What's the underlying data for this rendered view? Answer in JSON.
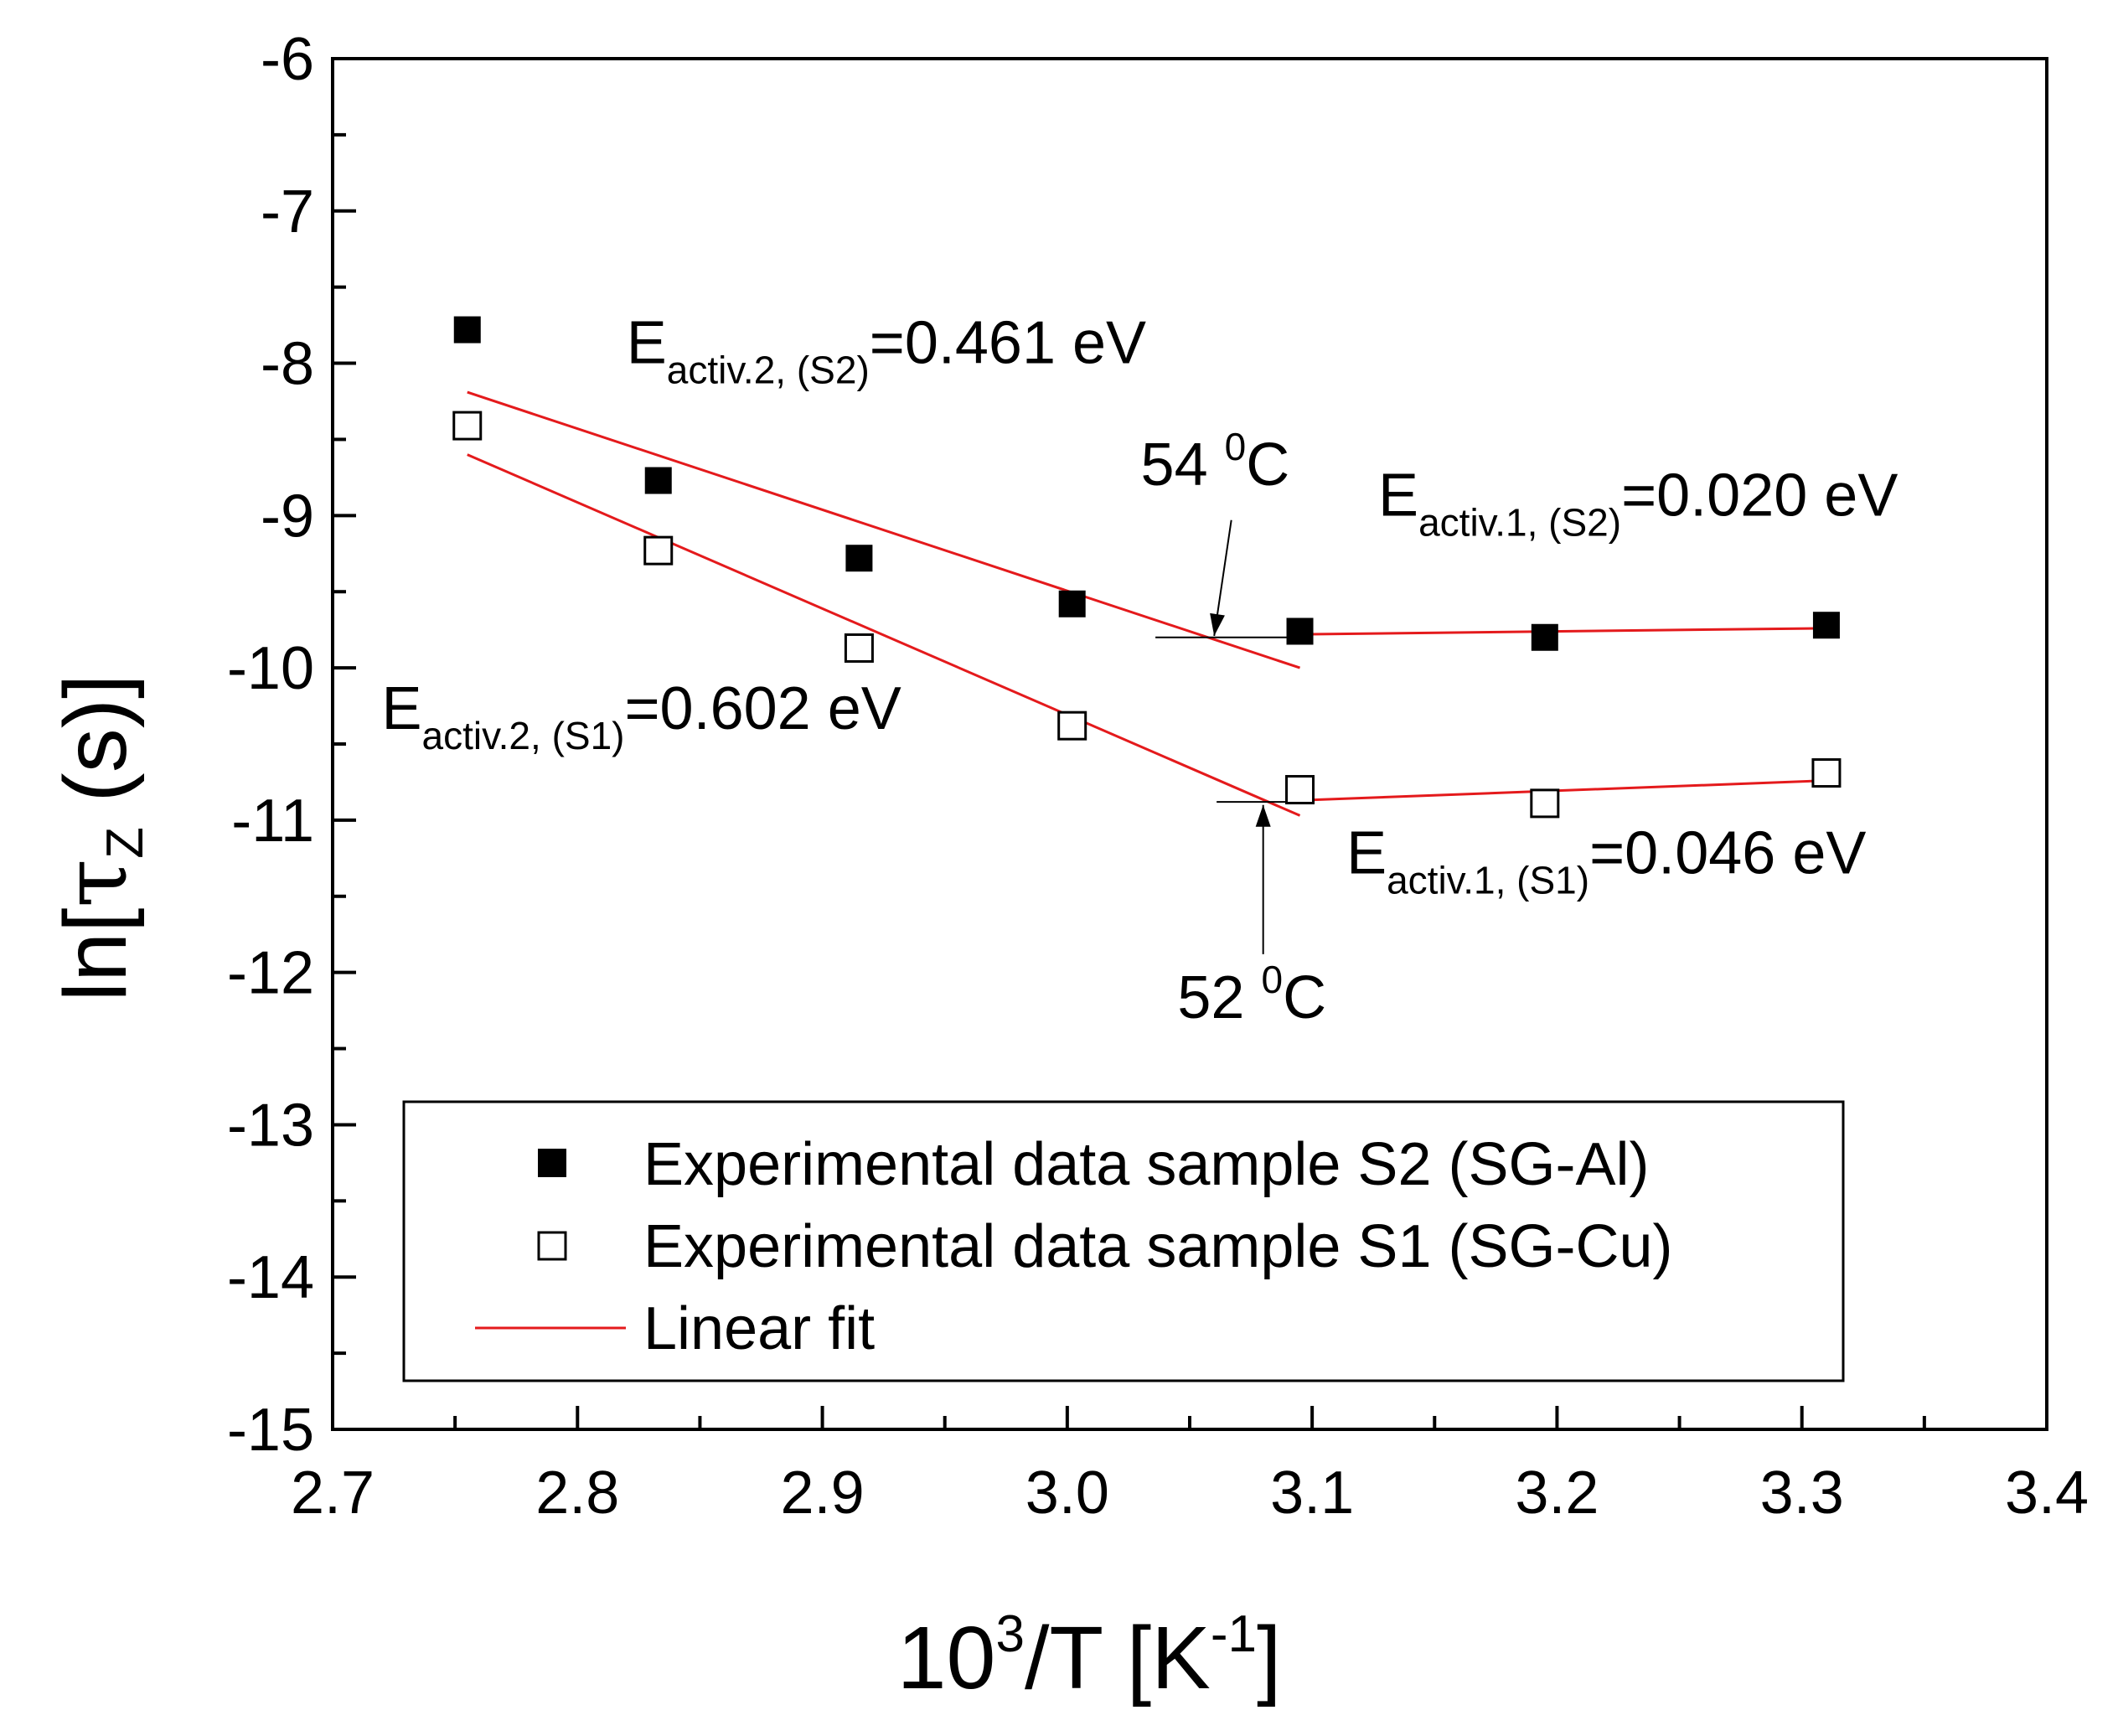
{
  "chart_data": {
    "type": "scatter",
    "title": "",
    "xlabel": {
      "base": "10",
      "sup1": "3",
      "mid": "/T [K",
      "sup2": "-1",
      "end": "]"
    },
    "ylabel": {
      "pre": "ln[",
      "greek": "τ",
      "sub": "Z",
      "post": " (s)]"
    },
    "xlim": [
      2.7,
      3.4
    ],
    "ylim": [
      -15,
      -6
    ],
    "xticks": [
      2.7,
      2.8,
      2.9,
      3.0,
      3.1,
      3.2,
      3.3,
      3.4
    ],
    "xtick_labels": [
      "2.7",
      "2.8",
      "2.9",
      "3.0",
      "3.1",
      "3.2",
      "3.3",
      "3.4"
    ],
    "yticks": [
      -15,
      -14,
      -13,
      -12,
      -11,
      -10,
      -9,
      -8,
      -7,
      -6
    ],
    "ytick_labels": [
      "-15",
      "-14",
      "-13",
      "-12",
      "-11",
      "-10",
      "-9",
      "-8",
      "-7",
      "-6"
    ],
    "series": [
      {
        "name": "Experimental data sample S2 (SG-Al)",
        "marker": "filled-square",
        "x": [
          2.755,
          2.833,
          2.915,
          3.002,
          3.095,
          3.195,
          3.31
        ],
        "y": [
          -7.78,
          -8.77,
          -9.28,
          -9.58,
          -9.76,
          -9.8,
          -9.72
        ]
      },
      {
        "name": "Experimental data sample S1 (SG-Cu)",
        "marker": "open-square",
        "x": [
          2.755,
          2.833,
          2.915,
          3.002,
          3.095,
          3.195,
          3.31
        ],
        "y": [
          -8.41,
          -9.23,
          -9.87,
          -10.38,
          -10.8,
          -10.89,
          -10.69
        ]
      }
    ],
    "fits": [
      {
        "name": "Linear fit",
        "x": [
          2.755,
          3.095
        ],
        "y": [
          -8.19,
          -10.0
        ]
      },
      {
        "name": "Linear fit",
        "x": [
          3.095,
          3.31
        ],
        "y": [
          -9.78,
          -9.74
        ]
      },
      {
        "name": "Linear fit",
        "x": [
          2.755,
          3.095
        ],
        "y": [
          -8.6,
          -10.97
        ]
      },
      {
        "name": "Linear fit",
        "x": [
          3.095,
          3.31
        ],
        "y": [
          -10.87,
          -10.74
        ]
      }
    ],
    "reference_lines": [
      {
        "x": [
          3.036,
          3.097
        ],
        "y": [
          -9.8,
          -9.8
        ]
      },
      {
        "x": [
          3.061,
          3.098
        ],
        "y": [
          -10.88,
          -10.88
        ]
      }
    ],
    "annotations": [
      {
        "main": "E",
        "sub": "activ.2, (S2)",
        "rest": "=0.461 eV",
        "x": 2.82,
        "y": -8.0
      },
      {
        "main": "E",
        "sub": "activ.2, (S1)",
        "rest": "=0.602 eV",
        "x": 2.72,
        "y": -10.4
      },
      {
        "main": "E",
        "sub": "activ.1, (S2)",
        "rest": "=0.020 eV",
        "x": 3.127,
        "y": -9.0
      },
      {
        "main": "E",
        "sub": "activ.1, (S1)",
        "rest": "=0.046 eV",
        "x": 3.114,
        "y": -11.35
      }
    ],
    "temperature_marks": [
      {
        "value": "54 ",
        "sup": "0",
        "unit": "C",
        "text_x": 3.03,
        "text_y": -8.8,
        "arrow_from": [
          3.067,
          -9.03
        ],
        "arrow_to": [
          3.06,
          -9.79
        ]
      },
      {
        "value": "52 ",
        "sup": "0",
        "unit": "C",
        "text_x": 3.045,
        "text_y": -12.3,
        "arrow_from": [
          3.08,
          -11.88
        ],
        "arrow_to": [
          3.08,
          -10.9
        ]
      }
    ],
    "legend": {
      "placement": "bottom",
      "entries": [
        {
          "label": "Experimental data sample S2 (SG-Al)",
          "marker": "filled-square",
          "color": "#000000"
        },
        {
          "label": "Experimental data sample S1 (SG-Cu)",
          "marker": "open-square",
          "color": "#000000"
        },
        {
          "label": "Linear fit",
          "marker": "line",
          "color": "#e41a1c"
        }
      ]
    },
    "colors": {
      "fit": "#e41a1c",
      "points": "#000000",
      "axes": "#000000"
    }
  }
}
